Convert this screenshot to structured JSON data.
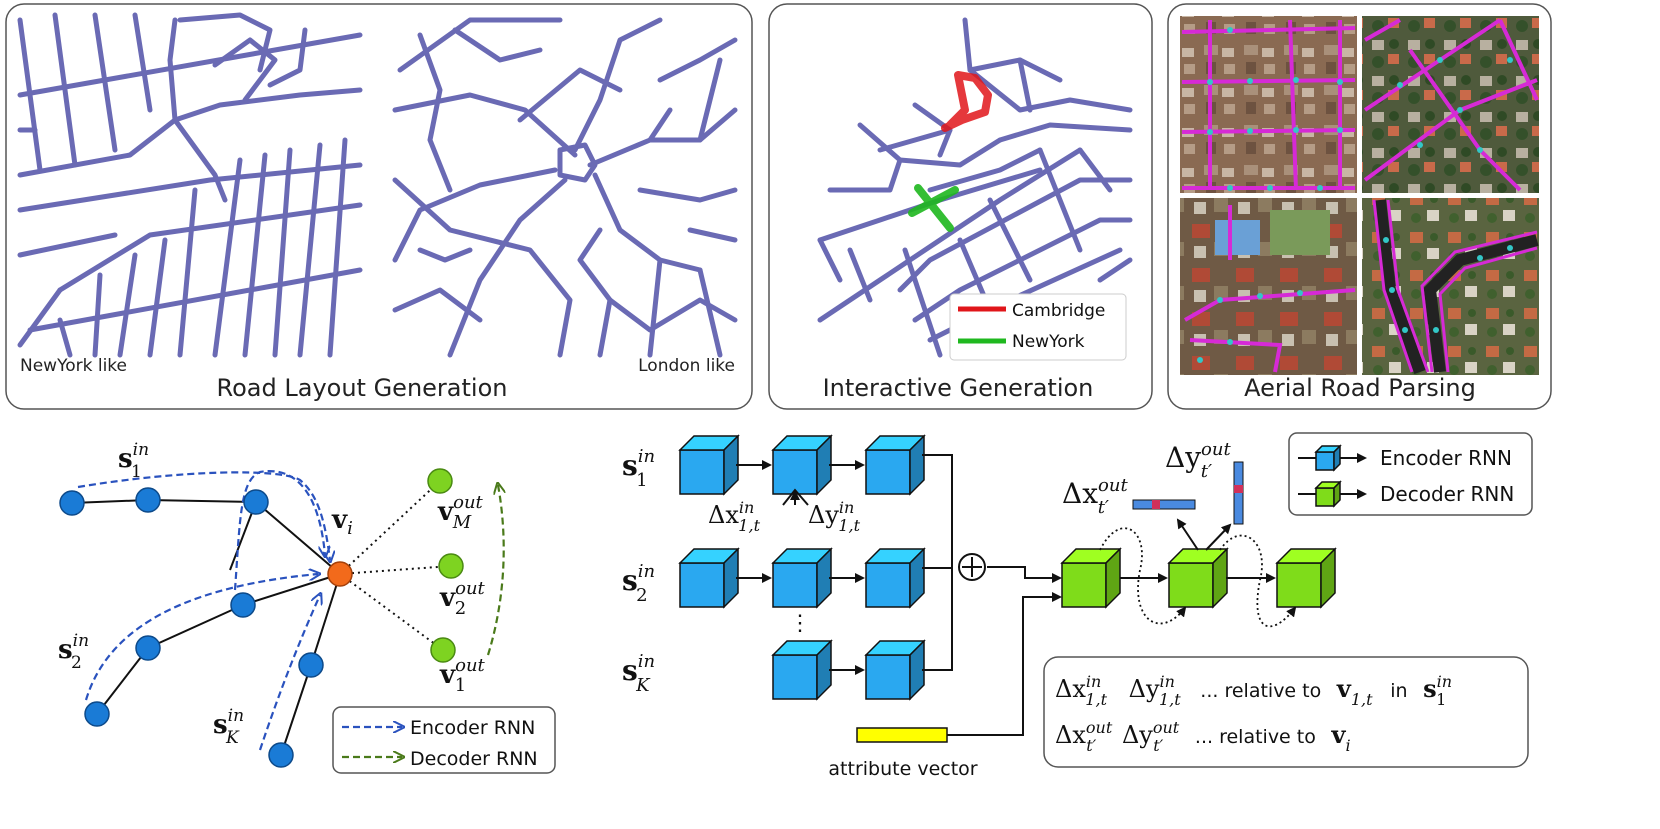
{
  "top_panels": {
    "road_layout": {
      "title": "Road Layout Generation",
      "left_caption": "NewYork like",
      "right_caption": "London like"
    },
    "interactive": {
      "title": "Interactive Generation",
      "legend": [
        {
          "label": "Cambridge",
          "color": "#e0151a"
        },
        {
          "label": "NewYork",
          "color": "#1fb81f"
        }
      ]
    },
    "aerial": {
      "title": "Aerial Road Parsing"
    }
  },
  "graph_diagram": {
    "labels": {
      "s1": {
        "base": "s",
        "sup": "in",
        "sub": "1"
      },
      "s2": {
        "base": "s",
        "sup": "in",
        "sub": "2"
      },
      "sK": {
        "base": "s",
        "sup": "in",
        "sub": "K"
      },
      "vi": {
        "base": "v",
        "sub": "i"
      },
      "vM": {
        "base": "v",
        "sup": "out",
        "sub": "M"
      },
      "v2": {
        "base": "v",
        "sup": "out",
        "sub": "2"
      },
      "v1": {
        "base": "v",
        "sup": "out",
        "sub": "1"
      }
    },
    "legend": {
      "encoder": "Encoder RNN",
      "decoder": "Decoder RNN"
    },
    "colors": {
      "input_node": "#1a7bd6",
      "center_node": "#f26a1b",
      "output_node": "#7ed321",
      "encoder_arrow": "#2a52be",
      "decoder_arrow": "#4a7a1a"
    }
  },
  "rnn_diagram": {
    "row_labels": {
      "s1": {
        "base": "s",
        "sup": "in",
        "sub": "1"
      },
      "s2": {
        "base": "s",
        "sup": "in",
        "sub": "2"
      },
      "sK": {
        "base": "s",
        "sup": "in",
        "sub": "K"
      }
    },
    "delta_in": {
      "dx": {
        "base": "Δx",
        "sup": "in",
        "sub": "1,t"
      },
      "dy": {
        "base": "Δy",
        "sup": "in",
        "sub": "1,t"
      }
    },
    "delta_out": {
      "dx": {
        "base": "Δx",
        "sup": "out",
        "sub": "t′"
      },
      "dy": {
        "base": "Δy",
        "sup": "out",
        "sub": "t′"
      }
    },
    "ellipsis": "⋮",
    "plus": "⊕",
    "attribute_label": "attribute vector",
    "legend": {
      "encoder": "Encoder RNN",
      "decoder": "Decoder RNN"
    },
    "notes": {
      "line1_text": "... relative to",
      "line1_vec": {
        "base": "v",
        "sub": "1,t"
      },
      "line1_in": "in",
      "line1_s": {
        "base": "s",
        "sup": "in",
        "sub": "1"
      },
      "line2_text": "... relative to",
      "line2_vec": {
        "base": "v",
        "sub": "i"
      }
    },
    "colors": {
      "encoder_cube": "#2aa8f0",
      "decoder_cube": "#7fdc1a",
      "attribute_bar": "#ffff00"
    }
  }
}
